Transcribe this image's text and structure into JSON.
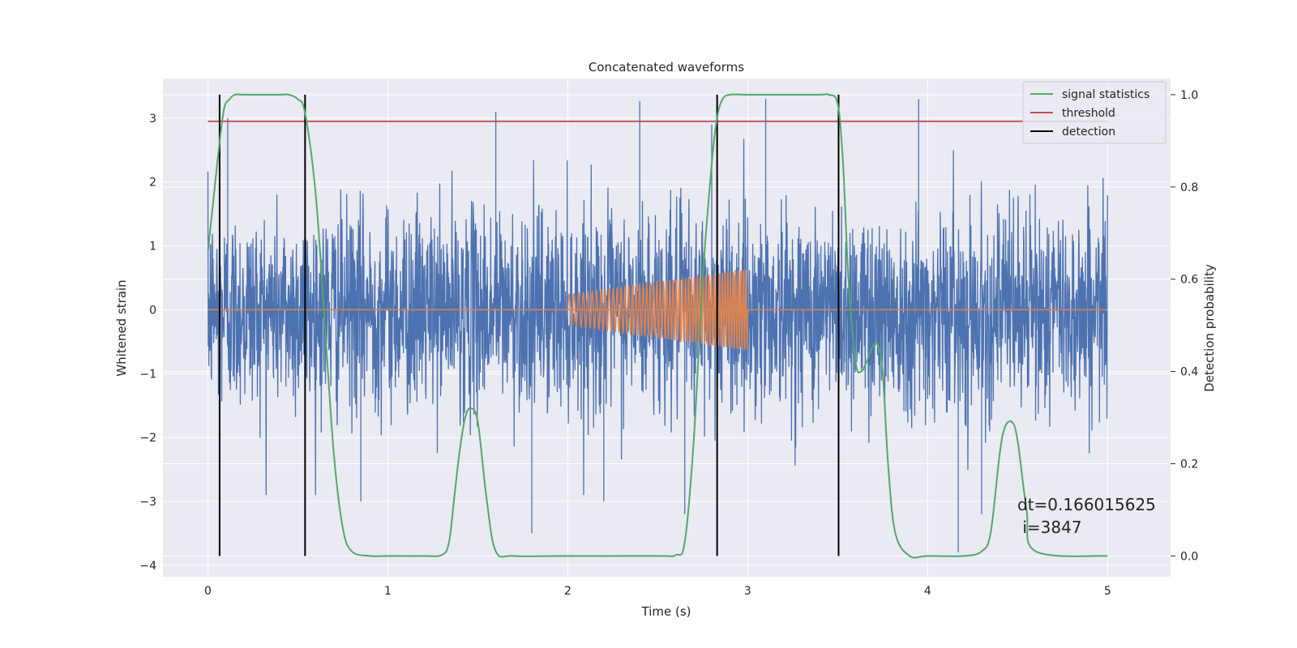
{
  "chart_data": {
    "type": "line",
    "title": "Concatenated waveforms",
    "xlabel": "Time (s)",
    "ylabel": "Whitened strain",
    "y2label": "Detection probability",
    "xlim": [
      -0.25,
      5.35
    ],
    "ylim": [
      -4.18,
      3.62
    ],
    "y2lim": [
      -0.045,
      1.035
    ],
    "xticks": [
      0,
      1,
      2,
      3,
      4,
      5
    ],
    "yticks": [
      -4,
      -3,
      -2,
      -1,
      0,
      1,
      2,
      3
    ],
    "y2ticks": [
      0.0,
      0.2,
      0.4,
      0.6,
      0.8,
      1.0
    ],
    "xtick_labels": [
      "0",
      "1",
      "2",
      "3",
      "4",
      "5"
    ],
    "ytick_labels": [
      "−4",
      "−3",
      "−2",
      "−1",
      "0",
      "1",
      "2",
      "3"
    ],
    "y2tick_labels": [
      "0.0",
      "0.2",
      "0.4",
      "0.6",
      "0.8",
      "1.0"
    ],
    "grid": true,
    "legend_position": "top-right",
    "colors": {
      "noise": "#4c72b0",
      "chirp": "#dd8452",
      "signal": "#55a868",
      "threshold": "#c44e52",
      "detection": "#000000",
      "background": "#eaeaf2",
      "grid": "#ffffff"
    },
    "noise_series": {
      "x_range": [
        0,
        5
      ],
      "std": 0.78,
      "extremes": [
        [
          0.11,
          3.0
        ],
        [
          1.6,
          3.1
        ],
        [
          2.4,
          3.27
        ],
        [
          2.8,
          2.9
        ],
        [
          3.1,
          3.3
        ],
        [
          3.95,
          3.3
        ],
        [
          1.8,
          -3.5
        ],
        [
          4.17,
          -3.8
        ],
        [
          2.2,
          -3.0
        ],
        [
          0.85,
          -3.0
        ],
        [
          2.65,
          -3.2
        ],
        [
          4.3,
          -3.2
        ]
      ]
    },
    "chirp_series": {
      "x_range": [
        2.0,
        3.0
      ],
      "amplitude_start": 0.24,
      "amplitude_end": 0.63,
      "baseline": 0
    },
    "threshold": {
      "value": 2.95,
      "x_range": [
        0,
        5
      ]
    },
    "detection": {
      "x": [
        0.065,
        0.54,
        2.83,
        3.505
      ],
      "y_range": [
        0.0,
        1.0
      ]
    },
    "signal_statistics": {
      "x": [
        0.0,
        0.03,
        0.06,
        0.09,
        0.12,
        0.15,
        0.2,
        0.3,
        0.4,
        0.45,
        0.5,
        0.54,
        0.6,
        0.65,
        0.7,
        0.75,
        0.8,
        0.9,
        1.0,
        1.2,
        1.3,
        1.34,
        1.37,
        1.4,
        1.43,
        1.46,
        1.5,
        1.55,
        1.6,
        1.7,
        2.0,
        2.5,
        2.6,
        2.65,
        2.7,
        2.75,
        2.8,
        2.83,
        2.86,
        2.9,
        3.0,
        3.2,
        3.4,
        3.45,
        3.5,
        3.53,
        3.56,
        3.6,
        3.63,
        3.66,
        3.69,
        3.72,
        3.75,
        3.78,
        3.82,
        3.9,
        4.0,
        4.2,
        4.3,
        4.35,
        4.4,
        4.43,
        4.47,
        4.5,
        4.55,
        4.6,
        5.0
      ],
      "y": [
        0.66,
        0.77,
        0.88,
        0.97,
        0.99,
        1.0,
        1.0,
        1.0,
        1.0,
        1.0,
        0.99,
        0.96,
        0.78,
        0.5,
        0.22,
        0.06,
        0.01,
        0.0,
        0.0,
        0.0,
        0.002,
        0.03,
        0.13,
        0.23,
        0.3,
        0.32,
        0.29,
        0.12,
        0.01,
        0.0,
        0.0,
        0.0,
        0.002,
        0.03,
        0.25,
        0.6,
        0.85,
        0.95,
        0.99,
        1.0,
        1.0,
        1.0,
        1.0,
        1.0,
        0.98,
        0.85,
        0.6,
        0.42,
        0.4,
        0.42,
        0.45,
        0.46,
        0.4,
        0.2,
        0.05,
        0.0,
        0.0,
        0.0,
        0.01,
        0.05,
        0.22,
        0.28,
        0.29,
        0.25,
        0.1,
        0.01,
        0.0
      ]
    },
    "legend": [
      {
        "label": "signal statistics",
        "color": "#55a868"
      },
      {
        "label": "threshold",
        "color": "#c44e52"
      },
      {
        "label": "detection",
        "color": "#000000"
      }
    ],
    "annotation": {
      "line1": "dt=0.166015625",
      "line2": " i=3847"
    }
  }
}
